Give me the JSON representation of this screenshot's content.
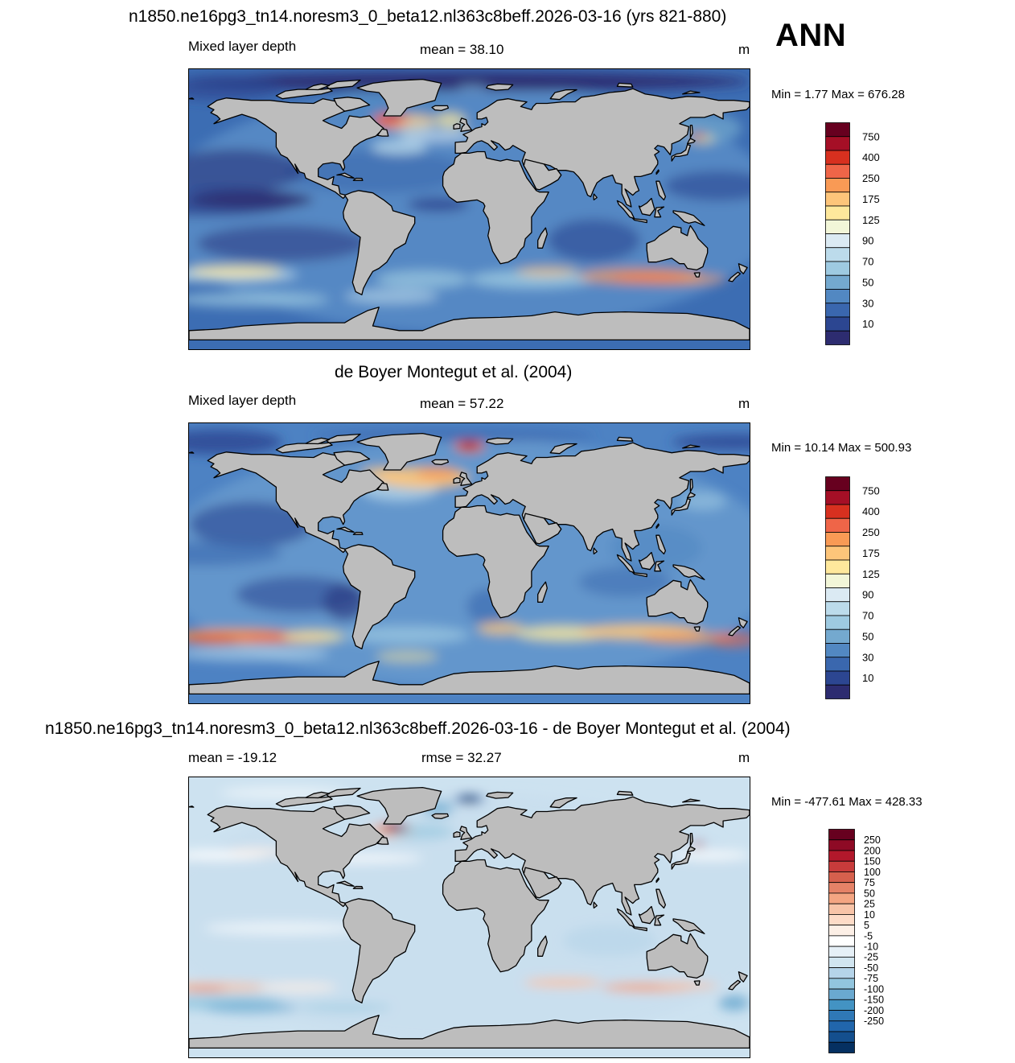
{
  "header": {
    "season_label": "ANN"
  },
  "panels": [
    {
      "title": "n1850.ne16pg3_tn14.noresm3_0_beta12.nl363c8beff.2026-03-16 (yrs 821-880)",
      "left_label": "Mixed layer depth",
      "center_label": "mean =  38.10",
      "units": "m",
      "minmax": "Min =   1.77 Max = 676.28",
      "colorbar": {
        "labels": [
          "750",
          "400",
          "250",
          "175",
          "125",
          "90",
          "70",
          "50",
          "30",
          "10"
        ],
        "colors": [
          "#67001f",
          "#a50f26",
          "#d7301f",
          "#ef6548",
          "#f99a55",
          "#fdc57a",
          "#fee89c",
          "#f2f6d8",
          "#dbeaf3",
          "#bcdbeb",
          "#9ecae1",
          "#74a9cf",
          "#5288c2",
          "#3a67ae",
          "#2c4691",
          "#2d2c70"
        ]
      }
    },
    {
      "title": "de Boyer Montegut et al. (2004)",
      "left_label": "Mixed layer depth",
      "center_label": "mean =  57.22",
      "units": "m",
      "minmax": "Min =  10.14 Max = 500.93",
      "colorbar": {
        "labels": [
          "750",
          "400",
          "250",
          "175",
          "125",
          "90",
          "70",
          "50",
          "30",
          "10"
        ],
        "colors": [
          "#67001f",
          "#a50f26",
          "#d7301f",
          "#ef6548",
          "#f99a55",
          "#fdc57a",
          "#fee89c",
          "#f2f6d8",
          "#dbeaf3",
          "#bcdbeb",
          "#9ecae1",
          "#74a9cf",
          "#5288c2",
          "#3a67ae",
          "#2c4691",
          "#2d2c70"
        ]
      }
    },
    {
      "title": "n1850.ne16pg3_tn14.noresm3_0_beta12.nl363c8beff.2026-03-16 - de Boyer Montegut et al. (2004)",
      "left_label": "mean = -19.12",
      "center_label": "rmse =  32.27",
      "units": "m",
      "minmax": "Min = -477.61 Max = 428.33",
      "colorbar": {
        "labels": [
          "250",
          "200",
          "150",
          "100",
          "75",
          "50",
          "25",
          "10",
          "5",
          "-5",
          "-10",
          "-25",
          "-50",
          "-75",
          "-100",
          "-150",
          "-200",
          "-250"
        ],
        "colors": [
          "#67001f",
          "#8e0a25",
          "#b2182b",
          "#c83b3b",
          "#d6604d",
          "#e58267",
          "#f4a582",
          "#f8c4a8",
          "#fddbc7",
          "#fcefe6",
          "#ffffff",
          "#e6f0f7",
          "#d1e5f0",
          "#b5d4e9",
          "#92c5de",
          "#6aa9d0",
          "#4393c3",
          "#2f78b6",
          "#2166ac",
          "#144f8e",
          "#053061"
        ]
      }
    }
  ],
  "colors": {
    "land": "#bdbdbd",
    "coast": "#000000",
    "ocean_model": "#3b6fb6",
    "ocean_obs": "#4a7ec0",
    "ocean_diff": "#d5e6f2"
  }
}
